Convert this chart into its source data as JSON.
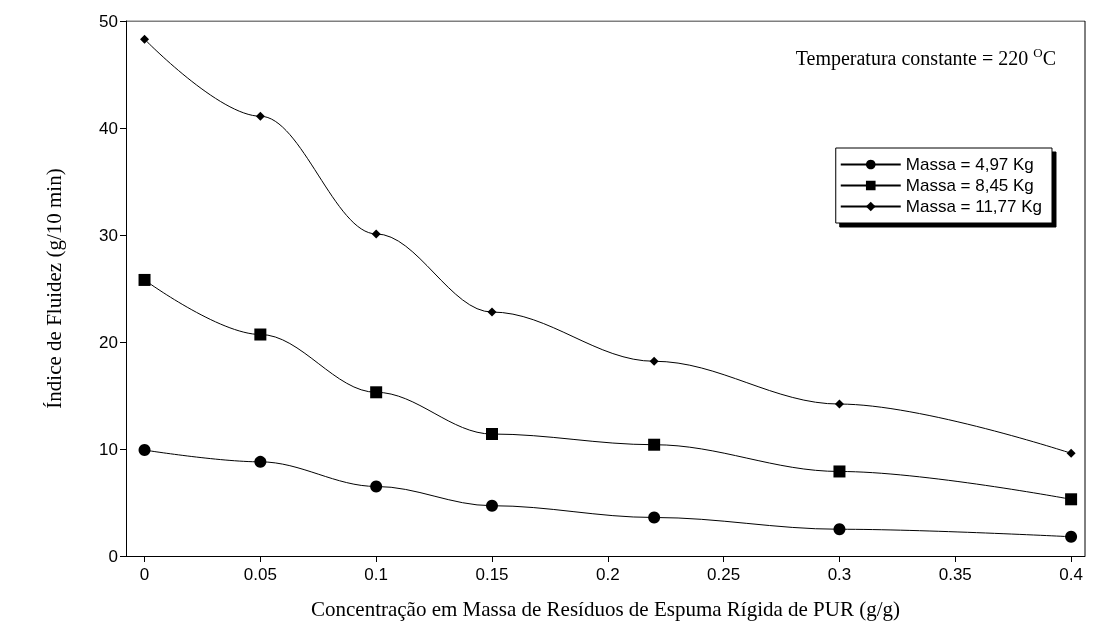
{
  "chart_data": {
    "type": "line",
    "xlabel": "Concentração em Massa de Resíduos de Espuma Rígida de PUR (g/g)",
    "ylabel": "Índice de Fluidez (g/10 min)",
    "annotations": [
      "Temperatura constante = 220 $^{O}$C"
    ],
    "x": [
      0,
      0.05,
      0.1,
      0.15,
      0.22,
      0.3,
      0.4
    ],
    "xlim": [
      -0.008,
      0.406
    ],
    "xticks": [
      0,
      0.05,
      0.1,
      0.15,
      0.2,
      0.25,
      0.3,
      0.35,
      0.4
    ],
    "ylim": [
      0,
      50
    ],
    "yticks": [
      0,
      10,
      20,
      30,
      40,
      50
    ],
    "grid": false,
    "legend": "top right",
    "series": [
      {
        "name": "Massa = 4,97 Kg",
        "color": "#000000",
        "marker": "circle",
        "values": [
          9.9,
          8.8,
          6.5,
          4.7,
          3.6,
          2.5,
          1.8
        ]
      },
      {
        "name": "Massa = 8,45 Kg",
        "color": "#000000",
        "marker": "square",
        "values": [
          25.8,
          20.7,
          15.3,
          11.4,
          10.4,
          7.9,
          5.3
        ]
      },
      {
        "name": "Massa = 11,77 Kg",
        "color": "#000000",
        "marker": "diamond",
        "values": [
          48.3,
          41.1,
          30.1,
          22.8,
          18.2,
          14.2,
          9.6
        ]
      }
    ]
  }
}
